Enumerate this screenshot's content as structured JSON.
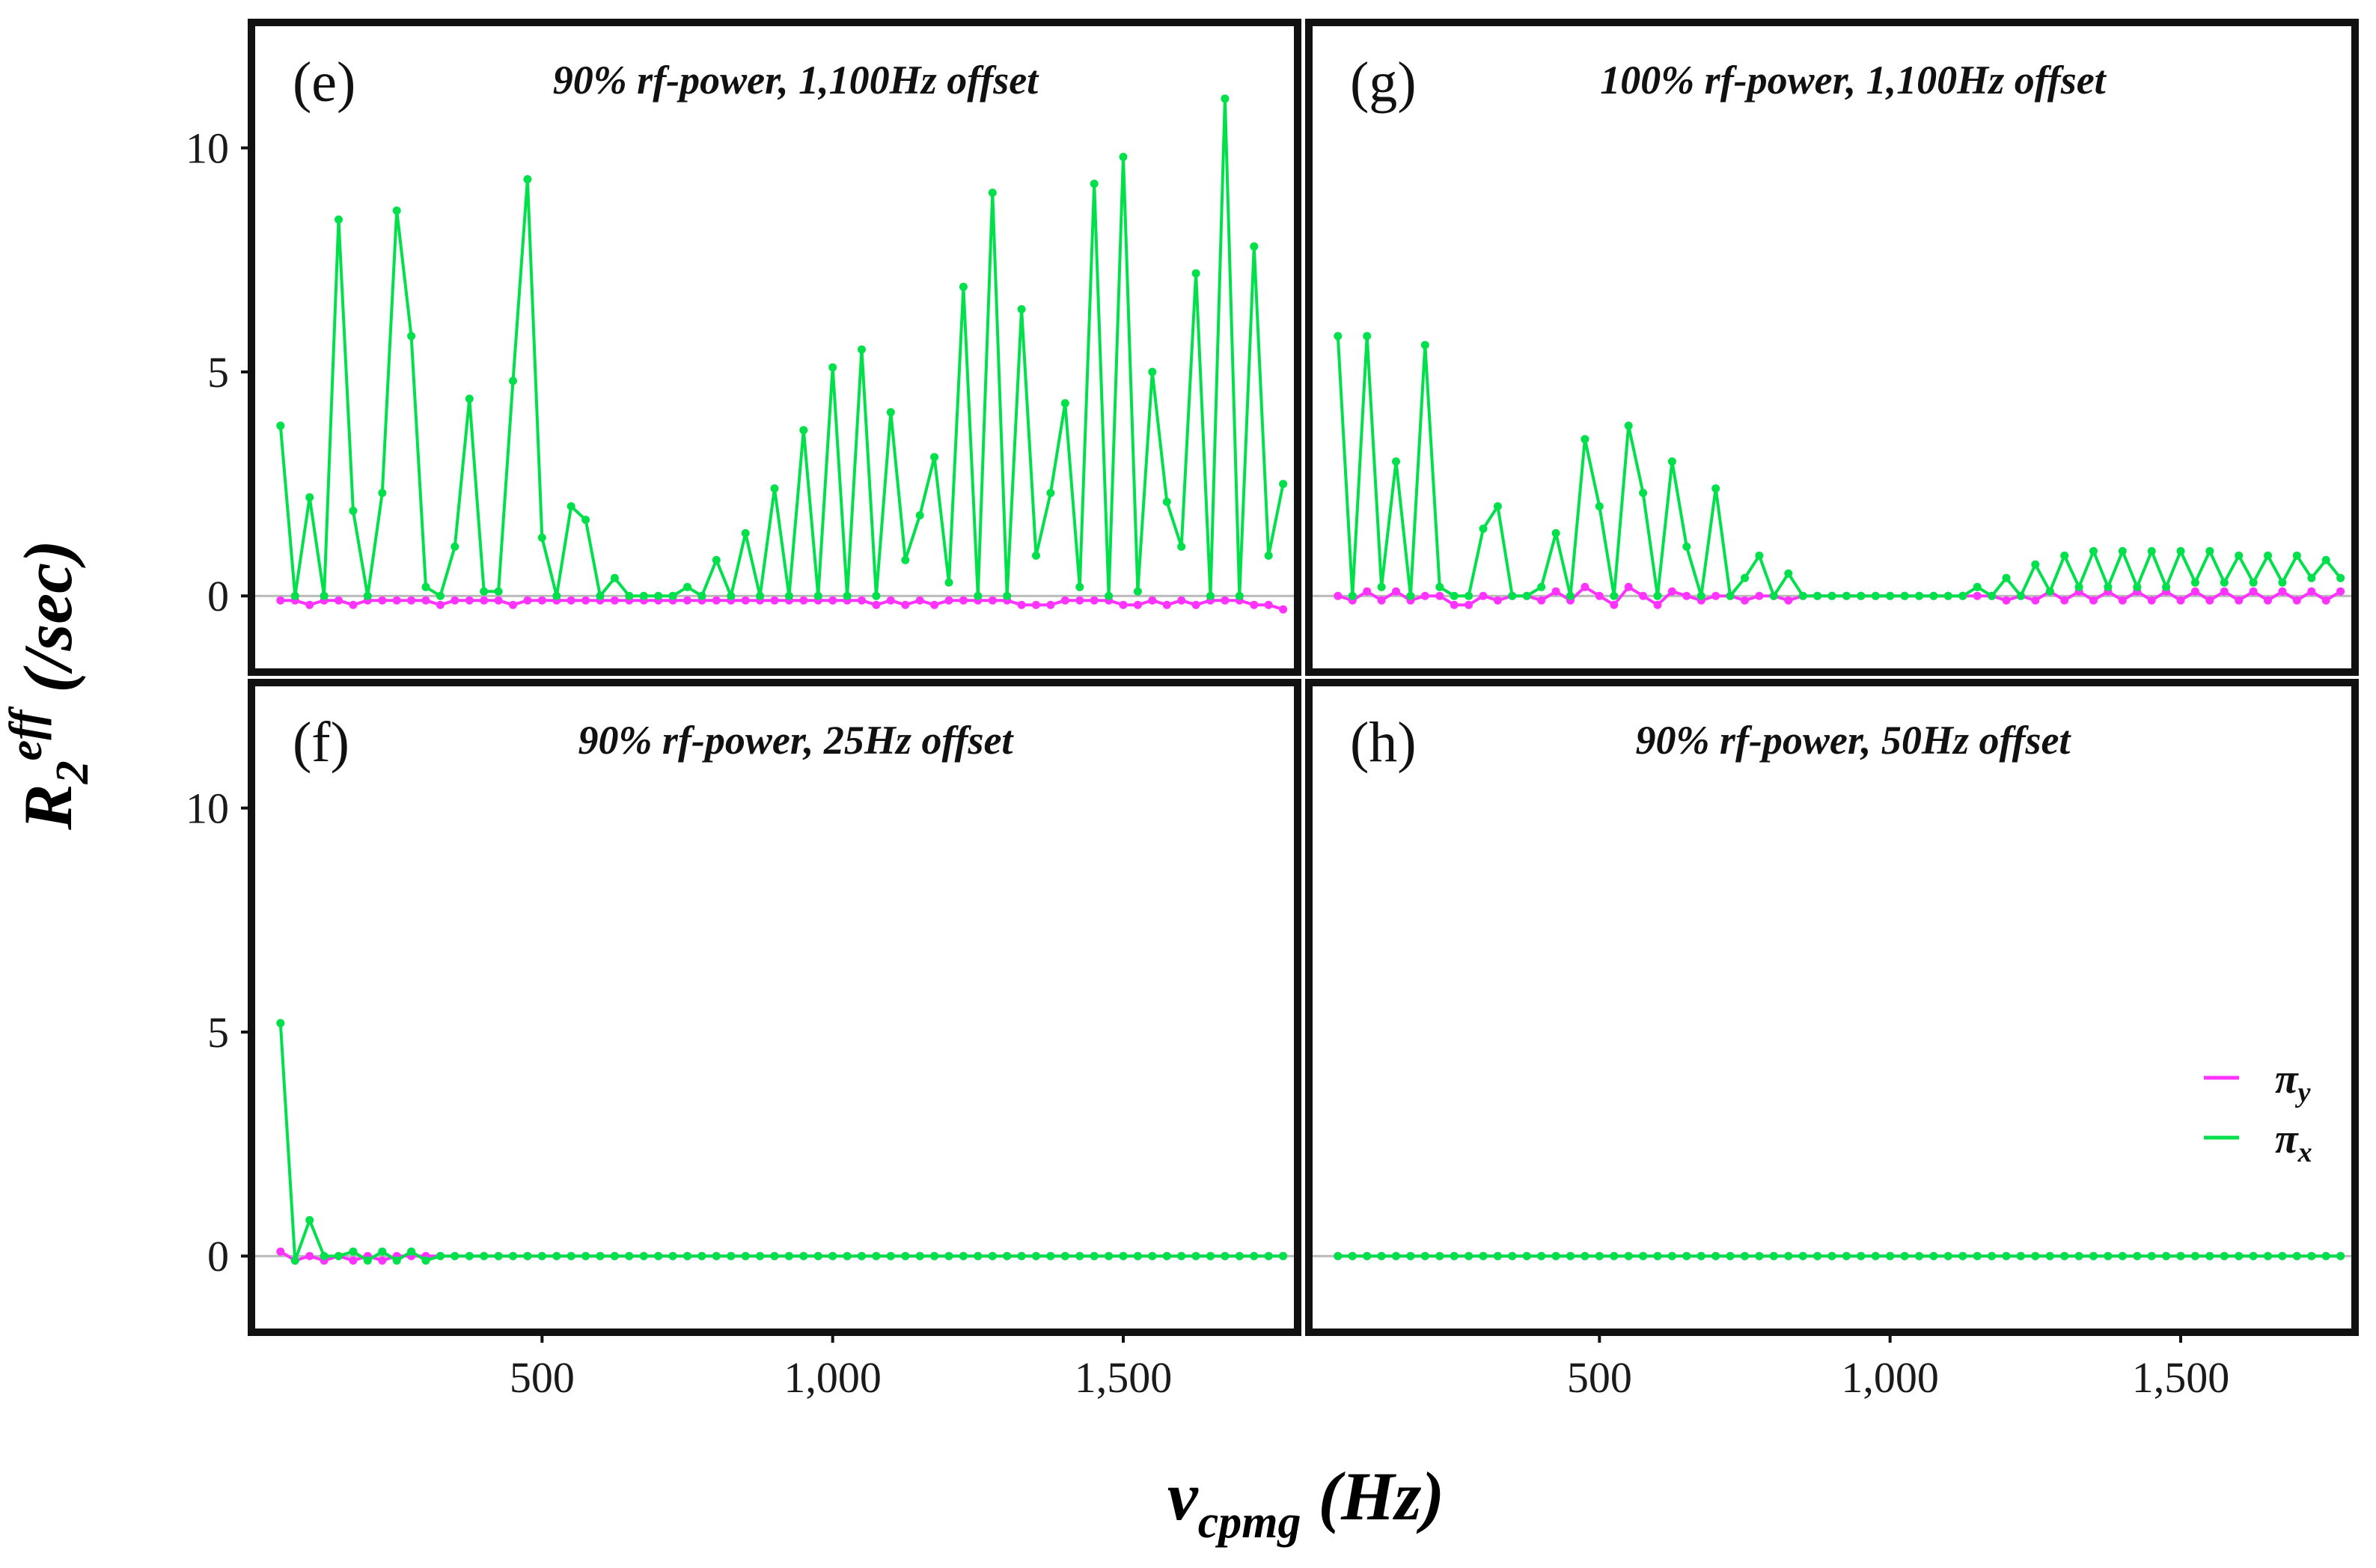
{
  "chart_data": {
    "type": "line",
    "xlabel": "vcpmg (Hz)",
    "xlabel_main": "v",
    "xlabel_sub": "cpmg",
    "xlabel_unit": " (Hz)",
    "ylabel": "R2eff (/sec)",
    "ylabel_main": "R",
    "ylabel_sub": "2",
    "ylabel_sup": "eff",
    "ylabel_unit": " (/sec)",
    "xlim": [
      0,
      1800
    ],
    "ylim": [
      -1.7,
      12.8
    ],
    "x_ticks": [
      500,
      1000,
      1500
    ],
    "x_tick_labels": [
      "500",
      "1,000",
      "1,500"
    ],
    "y_ticks": [
      0,
      5,
      10
    ],
    "y_tick_labels": [
      "0",
      "5",
      "10"
    ],
    "legend": {
      "position": "bottom-right of panel (h)",
      "entries": [
        {
          "symbol": "π",
          "sub": "y",
          "color": "#ff33ff"
        },
        {
          "symbol": "π",
          "sub": "x",
          "color": "#00e04b"
        }
      ]
    },
    "panels": [
      {
        "letter": "(e)",
        "title": "90% rf-power, 1,100Hz offset",
        "x": [
          50,
          75,
          100,
          125,
          150,
          175,
          200,
          225,
          250,
          275,
          300,
          325,
          350,
          375,
          400,
          425,
          450,
          475,
          500,
          525,
          550,
          575,
          600,
          625,
          650,
          675,
          700,
          725,
          750,
          775,
          800,
          825,
          850,
          875,
          900,
          925,
          950,
          975,
          1000,
          1025,
          1050,
          1075,
          1100,
          1125,
          1150,
          1175,
          1200,
          1225,
          1250,
          1275,
          1300,
          1325,
          1350,
          1375,
          1400,
          1425,
          1450,
          1475,
          1500,
          1525,
          1550,
          1575,
          1600,
          1625,
          1650,
          1675,
          1700,
          1725,
          1750,
          1775
        ],
        "series": [
          {
            "name": "πx",
            "values": [
              3.8,
              0.0,
              2.2,
              0.0,
              8.4,
              1.9,
              0.0,
              2.3,
              8.6,
              5.8,
              0.2,
              0.0,
              1.1,
              4.4,
              0.1,
              0.1,
              4.8,
              9.3,
              1.3,
              0.0,
              2.0,
              1.7,
              0.0,
              0.4,
              0.0,
              0.0,
              0.0,
              0.0,
              0.2,
              0.0,
              0.8,
              0.0,
              1.4,
              0.0,
              2.4,
              0.0,
              3.7,
              0.0,
              5.1,
              0.0,
              5.5,
              0.0,
              4.1,
              0.8,
              1.8,
              3.1,
              0.3,
              6.9,
              0.0,
              9.0,
              0.0,
              6.4,
              0.9,
              2.3,
              4.3,
              0.2,
              9.2,
              0.0,
              9.8,
              0.1,
              5.0,
              2.1,
              1.1,
              7.2,
              0.0,
              11.1,
              0.0,
              7.8,
              0.9,
              2.5
            ]
          },
          {
            "name": "πy",
            "values": [
              -0.1,
              -0.1,
              -0.2,
              -0.1,
              -0.1,
              -0.2,
              -0.1,
              -0.1,
              -0.1,
              -0.1,
              -0.1,
              -0.2,
              -0.1,
              -0.1,
              -0.1,
              -0.1,
              -0.2,
              -0.1,
              -0.1,
              -0.1,
              -0.1,
              -0.1,
              -0.1,
              -0.1,
              -0.1,
              -0.1,
              -0.1,
              -0.1,
              -0.1,
              -0.1,
              -0.1,
              -0.1,
              -0.1,
              -0.1,
              -0.1,
              -0.1,
              -0.1,
              -0.1,
              -0.1,
              -0.1,
              -0.1,
              -0.2,
              -0.1,
              -0.2,
              -0.1,
              -0.2,
              -0.1,
              -0.1,
              -0.1,
              -0.1,
              -0.1,
              -0.2,
              -0.2,
              -0.2,
              -0.1,
              -0.1,
              -0.1,
              -0.1,
              -0.2,
              -0.2,
              -0.1,
              -0.2,
              -0.1,
              -0.2,
              -0.1,
              -0.1,
              -0.1,
              -0.2,
              -0.2,
              -0.3
            ]
          }
        ]
      },
      {
        "letter": "(g)",
        "title": "100% rf-power, 1,100Hz offset",
        "x": [
          50,
          75,
          100,
          125,
          150,
          175,
          200,
          225,
          250,
          275,
          300,
          325,
          350,
          375,
          400,
          425,
          450,
          475,
          500,
          525,
          550,
          575,
          600,
          625,
          650,
          675,
          700,
          725,
          750,
          775,
          800,
          825,
          850,
          875,
          900,
          925,
          950,
          975,
          1000,
          1025,
          1050,
          1075,
          1100,
          1125,
          1150,
          1175,
          1200,
          1225,
          1250,
          1275,
          1300,
          1325,
          1350,
          1375,
          1400,
          1425,
          1450,
          1475,
          1500,
          1525,
          1550,
          1575,
          1600,
          1625,
          1650,
          1675,
          1700,
          1725,
          1750,
          1775
        ],
        "series": [
          {
            "name": "πx",
            "values": [
              5.8,
              0.0,
              5.8,
              0.2,
              3.0,
              0.0,
              5.6,
              0.2,
              0.0,
              0.0,
              1.5,
              2.0,
              0.0,
              0.0,
              0.2,
              1.4,
              0.0,
              3.5,
              2.0,
              0.0,
              3.8,
              2.3,
              0.0,
              3.0,
              1.1,
              0.0,
              2.4,
              0.0,
              0.4,
              0.9,
              0.0,
              0.5,
              0.0,
              0.0,
              0.0,
              0.0,
              0.0,
              0.0,
              0.0,
              0.0,
              0.0,
              0.0,
              0.0,
              0.0,
              0.2,
              0.0,
              0.4,
              0.0,
              0.7,
              0.1,
              0.9,
              0.2,
              1.0,
              0.2,
              1.0,
              0.2,
              1.0,
              0.2,
              1.0,
              0.3,
              1.0,
              0.3,
              0.9,
              0.3,
              0.9,
              0.3,
              0.9,
              0.4,
              0.8,
              0.4
            ]
          },
          {
            "name": "πy",
            "values": [
              0.0,
              -0.1,
              0.1,
              -0.1,
              0.1,
              -0.1,
              0.0,
              0.0,
              -0.2,
              -0.2,
              0.0,
              -0.1,
              0.0,
              0.0,
              -0.1,
              0.1,
              -0.1,
              0.2,
              0.0,
              -0.2,
              0.2,
              0.0,
              -0.2,
              0.1,
              0.0,
              -0.1,
              0.0,
              0.0,
              -0.1,
              0.0,
              0.0,
              -0.1,
              0.0,
              0.0,
              0.0,
              0.0,
              0.0,
              0.0,
              0.0,
              0.0,
              0.0,
              0.0,
              0.0,
              0.0,
              0.0,
              0.0,
              -0.1,
              0.0,
              -0.1,
              0.1,
              -0.1,
              0.1,
              -0.1,
              0.1,
              -0.1,
              0.1,
              -0.1,
              0.1,
              -0.1,
              0.1,
              -0.1,
              0.1,
              -0.1,
              0.1,
              -0.1,
              0.1,
              -0.1,
              0.1,
              -0.1,
              0.1
            ]
          }
        ]
      },
      {
        "letter": "(f)",
        "title": "90% rf-power, 25Hz offset",
        "x": [
          50,
          75,
          100,
          125,
          150,
          175,
          200,
          225,
          250,
          275,
          300,
          325,
          350,
          375,
          400,
          425,
          450,
          475,
          500,
          525,
          550,
          575,
          600,
          625,
          650,
          675,
          700,
          725,
          750,
          775,
          800,
          825,
          850,
          875,
          900,
          925,
          950,
          975,
          1000,
          1025,
          1050,
          1075,
          1100,
          1125,
          1150,
          1175,
          1200,
          1225,
          1250,
          1275,
          1300,
          1325,
          1350,
          1375,
          1400,
          1425,
          1450,
          1475,
          1500,
          1525,
          1550,
          1575,
          1600,
          1625,
          1650,
          1675,
          1700,
          1725,
          1750,
          1775
        ],
        "series": [
          {
            "name": "πx",
            "values": [
              5.2,
              -0.1,
              0.8,
              0.0,
              0.0,
              0.1,
              -0.1,
              0.1,
              -0.1,
              0.1,
              -0.1,
              0.0,
              0.0,
              0.0,
              0.0,
              0.0,
              0.0,
              0.0,
              0.0,
              0.0,
              0.0,
              0.0,
              0.0,
              0.0,
              0.0,
              0.0,
              0.0,
              0.0,
              0.0,
              0.0,
              0.0,
              0.0,
              0.0,
              0.0,
              0.0,
              0.0,
              0.0,
              0.0,
              0.0,
              0.0,
              0.0,
              0.0,
              0.0,
              0.0,
              0.0,
              0.0,
              0.0,
              0.0,
              0.0,
              0.0,
              0.0,
              0.0,
              0.0,
              0.0,
              0.0,
              0.0,
              0.0,
              0.0,
              0.0,
              0.0,
              0.0,
              0.0,
              0.0,
              0.0,
              0.0,
              0.0,
              0.0,
              0.0,
              0.0,
              0.0
            ]
          },
          {
            "name": "πy",
            "values": [
              0.1,
              -0.1,
              0.0,
              -0.1,
              0.0,
              -0.1,
              0.0,
              -0.1,
              0.0,
              0.0,
              0.0,
              0.0,
              0.0,
              0.0,
              0.0,
              0.0,
              0.0,
              0.0,
              0.0,
              0.0,
              0.0,
              0.0,
              0.0,
              0.0,
              0.0,
              0.0,
              0.0,
              0.0,
              0.0,
              0.0,
              0.0,
              0.0,
              0.0,
              0.0,
              0.0,
              0.0,
              0.0,
              0.0,
              0.0,
              0.0,
              0.0,
              0.0,
              0.0,
              0.0,
              0.0,
              0.0,
              0.0,
              0.0,
              0.0,
              0.0,
              0.0,
              0.0,
              0.0,
              0.0,
              0.0,
              0.0,
              0.0,
              0.0,
              0.0,
              0.0,
              0.0,
              0.0,
              0.0,
              0.0,
              0.0,
              0.0,
              0.0,
              0.0,
              0.0,
              0.0
            ]
          }
        ]
      },
      {
        "letter": "(h)",
        "title": "90% rf-power, 50Hz offset",
        "x": [
          50,
          75,
          100,
          125,
          150,
          175,
          200,
          225,
          250,
          275,
          300,
          325,
          350,
          375,
          400,
          425,
          450,
          475,
          500,
          525,
          550,
          575,
          600,
          625,
          650,
          675,
          700,
          725,
          750,
          775,
          800,
          825,
          850,
          875,
          900,
          925,
          950,
          975,
          1000,
          1025,
          1050,
          1075,
          1100,
          1125,
          1150,
          1175,
          1200,
          1225,
          1250,
          1275,
          1300,
          1325,
          1350,
          1375,
          1400,
          1425,
          1450,
          1475,
          1500,
          1525,
          1550,
          1575,
          1600,
          1625,
          1650,
          1675,
          1700,
          1725,
          1750,
          1775
        ],
        "series": [
          {
            "name": "πx",
            "values": [
              0.0,
              0.0,
              0.0,
              0.0,
              0.0,
              0.0,
              0.0,
              0.0,
              0.0,
              0.0,
              0.0,
              0.0,
              0.0,
              0.0,
              0.0,
              0.0,
              0.0,
              0.0,
              0.0,
              0.0,
              0.0,
              0.0,
              0.0,
              0.0,
              0.0,
              0.0,
              0.0,
              0.0,
              0.0,
              0.0,
              0.0,
              0.0,
              0.0,
              0.0,
              0.0,
              0.0,
              0.0,
              0.0,
              0.0,
              0.0,
              0.0,
              0.0,
              0.0,
              0.0,
              0.0,
              0.0,
              0.0,
              0.0,
              0.0,
              0.0,
              0.0,
              0.0,
              0.0,
              0.0,
              0.0,
              0.0,
              0.0,
              0.0,
              0.0,
              0.0,
              0.0,
              0.0,
              0.0,
              0.0,
              0.0,
              0.0,
              0.0,
              0.0,
              0.0,
              0.0
            ]
          },
          {
            "name": "πy",
            "values": [
              0.0,
              0.0,
              0.0,
              0.0,
              0.0,
              0.0,
              0.0,
              0.0,
              0.0,
              0.0,
              0.0,
              0.0,
              0.0,
              0.0,
              0.0,
              0.0,
              0.0,
              0.0,
              0.0,
              0.0,
              0.0,
              0.0,
              0.0,
              0.0,
              0.0,
              0.0,
              0.0,
              0.0,
              0.0,
              0.0,
              0.0,
              0.0,
              0.0,
              0.0,
              0.0,
              0.0,
              0.0,
              0.0,
              0.0,
              0.0,
              0.0,
              0.0,
              0.0,
              0.0,
              0.0,
              0.0,
              0.0,
              0.0,
              0.0,
              0.0,
              0.0,
              0.0,
              0.0,
              0.0,
              0.0,
              0.0,
              0.0,
              0.0,
              0.0,
              0.0,
              0.0,
              0.0,
              0.0,
              0.0,
              0.0,
              0.0,
              0.0,
              0.0,
              0.0,
              0.0
            ]
          }
        ]
      }
    ]
  }
}
